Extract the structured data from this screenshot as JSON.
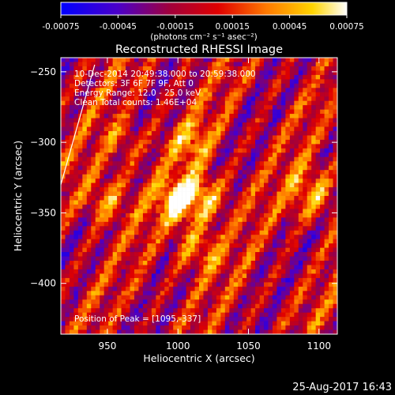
{
  "colorbar": {
    "ticks": [
      "-0.00075",
      "-0.00045",
      "-0.00015",
      "0.00015",
      "0.00045",
      "0.00075"
    ],
    "unit_label": "(photons cm⁻² s⁻¹ asec⁻²)",
    "range": [
      -0.00075,
      0.00075
    ]
  },
  "chart_data": {
    "type": "heatmap",
    "title": "Reconstructed RHESSI Image",
    "xlabel": "Heliocentric X (arcsec)",
    "ylabel": "Heliocentric Y (arcsec)",
    "xlim": [
      917,
      1113
    ],
    "ylim": [
      -436,
      -240
    ],
    "x_ticks": [
      950,
      1000,
      1050,
      1100
    ],
    "y_ticks": [
      -250,
      -300,
      -350,
      -400
    ],
    "x_tick_labels": [
      "950",
      "1000",
      "1050",
      "1100"
    ],
    "y_tick_labels": [
      "−250",
      "−300",
      "−350",
      "−400"
    ],
    "colormap": "hot",
    "peak": [
      1095,
      -337
    ],
    "hot_spots": [
      {
        "x": 1000,
        "y": -342,
        "intensity": 1.0
      },
      {
        "x": 1018,
        "y": -338,
        "intensity": 0.9
      },
      {
        "x": 1095,
        "y": -337,
        "intensity": 1.0
      },
      {
        "x": 948,
        "y": -340,
        "intensity": 0.8
      },
      {
        "x": 1015,
        "y": -375,
        "intensity": 0.75
      },
      {
        "x": 1010,
        "y": -300,
        "intensity": 0.6
      },
      {
        "x": 960,
        "y": -300,
        "intensity": 0.55
      }
    ],
    "limb_arc": {
      "from": [
        941,
        -245
      ],
      "to": [
        917,
        -330
      ]
    },
    "annotations": [
      "10-Dec-2014 20:49:38.000 to 20:59:38.000",
      "Detectors: 3F 6F 7F 9F, Att 0",
      "Energy Range: 12.0 - 25.0 keV",
      "Clean     Total counts: 1.46E+04"
    ],
    "peak_label": "Position of Peak = [1095,-337]"
  },
  "timestamp": "25-Aug-2017 16:43"
}
